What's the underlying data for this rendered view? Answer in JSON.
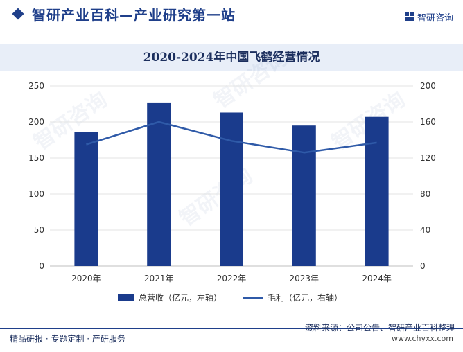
{
  "header": {
    "title": "智研产业百科—产业研究第一站",
    "brand_name": "智研咨询",
    "brand_color": "#1f3f8a"
  },
  "footer": {
    "tags": "精品研报 · 专题定制 · 产研服务",
    "source": "资料来源：公司公告、智研产业百科整理",
    "url": "www.chyxx.com"
  },
  "watermark": "智研咨询",
  "chart_data": {
    "type": "bar",
    "title": "2020-2024年中国飞鹤经营情况",
    "categories": [
      "2020年",
      "2021年",
      "2022年",
      "2023年",
      "2024年"
    ],
    "series": [
      {
        "name": "总营收（亿元，左轴）",
        "type": "bar",
        "axis": "left",
        "color": "#1a3b8c",
        "values": [
          186,
          227,
          213,
          195,
          207
        ]
      },
      {
        "name": "毛利（亿元，右轴）",
        "type": "line",
        "axis": "right",
        "color": "#2f5aa8",
        "values": [
          135,
          160,
          139,
          126,
          137
        ]
      }
    ],
    "y_left": {
      "min": 0,
      "max": 250,
      "ticks": [
        0,
        50,
        100,
        150,
        200,
        250
      ]
    },
    "y_right": {
      "min": 0,
      "max": 200,
      "ticks": [
        0,
        40,
        80,
        120,
        160,
        200
      ]
    },
    "grid": true,
    "legend_position": "bottom"
  }
}
